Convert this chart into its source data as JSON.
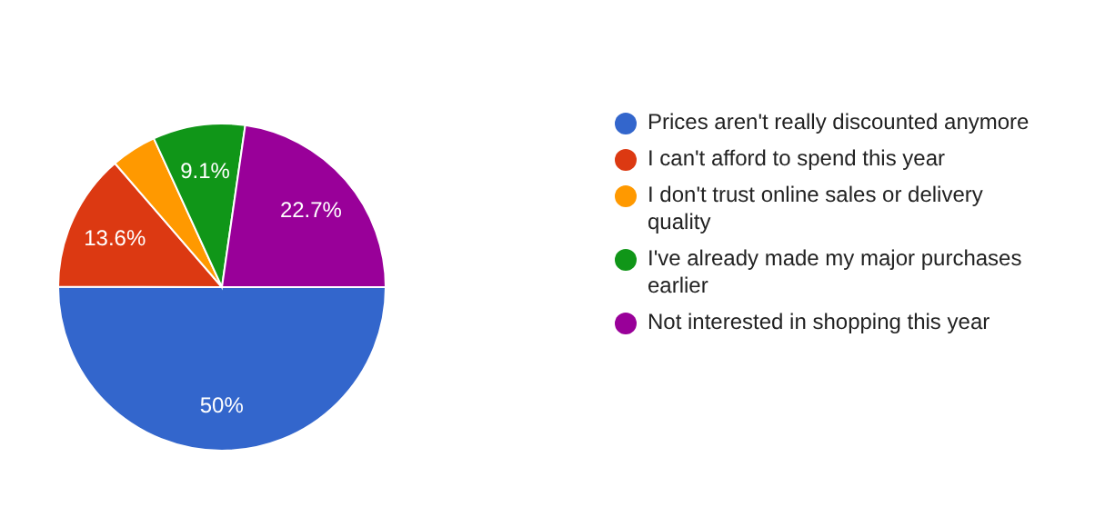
{
  "chart_data": {
    "type": "pie",
    "categories": [
      "Prices aren't really discounted anymore",
      "I can't afford to spend this year",
      "I don't trust online sales or delivery quality",
      "I've already made my major purchases earlier",
      "Not interested in shopping this year"
    ],
    "values": [
      50,
      13.6,
      4.5,
      9.1,
      22.7
    ],
    "colors": [
      "#3366cc",
      "#dc3912",
      "#ff9900",
      "#109618",
      "#990099"
    ],
    "value_labels": [
      "50%",
      "13.6%",
      null,
      "9.1%",
      "22.7%"
    ],
    "legend": "right"
  }
}
